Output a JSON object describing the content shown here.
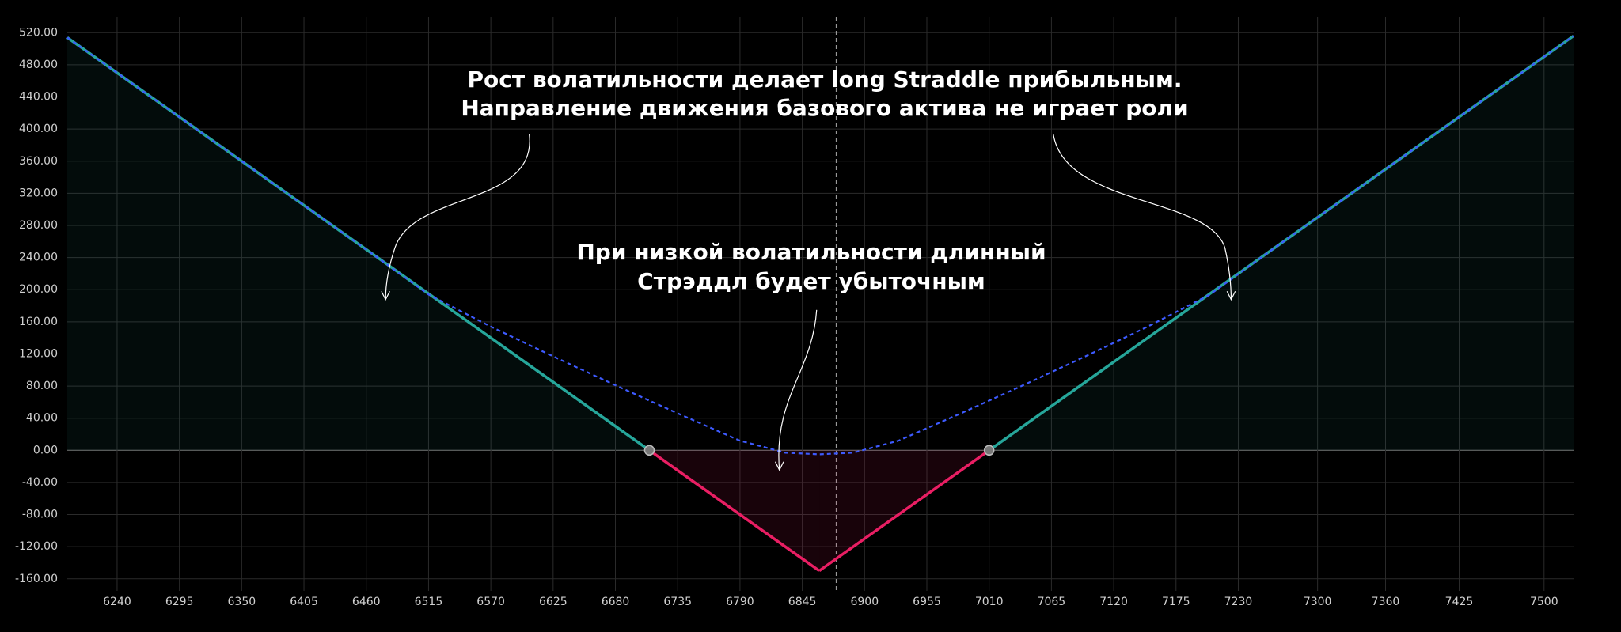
{
  "chart_data": {
    "type": "line",
    "annotations": [
      [
        "Рост волатильности делает long Straddle прибыльным.",
        "Направление движения базового актива не играет роли"
      ],
      [
        "При низкой волатильности длинный",
        "Стрэддл будет убыточным"
      ]
    ],
    "xlim": [
      6196,
      7526
    ],
    "ylim": [
      -175,
      540
    ],
    "xticks": [
      6240,
      6295,
      6350,
      6405,
      6460,
      6515,
      6570,
      6625,
      6680,
      6735,
      6790,
      6845,
      6900,
      6955,
      7010,
      7065,
      7120,
      7175,
      7230,
      7300,
      7360,
      7425,
      7500
    ],
    "yticks": [
      {
        "value": 520,
        "label": "520.00"
      },
      {
        "value": 480,
        "label": "480.00"
      },
      {
        "value": 440,
        "label": "440.00"
      },
      {
        "value": 400,
        "label": "400.00"
      },
      {
        "value": 360,
        "label": "360.00"
      },
      {
        "value": 320,
        "label": "320.00"
      },
      {
        "value": 280,
        "label": "280.00"
      },
      {
        "value": 240,
        "label": "240.00"
      },
      {
        "value": 200,
        "label": "200.00"
      },
      {
        "value": 160,
        "label": "160.00"
      },
      {
        "value": 120,
        "label": "120.00"
      },
      {
        "value": 80,
        "label": "80.00"
      },
      {
        "value": 40,
        "label": "40.00"
      },
      {
        "value": 0,
        "label": "0.00"
      },
      {
        "value": -40,
        "label": "-40.00"
      },
      {
        "value": -80,
        "label": "-80.00"
      },
      {
        "value": -120,
        "label": "-120.00"
      },
      {
        "value": -160,
        "label": "-160.00"
      }
    ],
    "grid": true,
    "vline": 6875,
    "series": [
      {
        "color": "#26a69a",
        "negative_color": "#e91e63",
        "x": [
          6196,
          6710,
          6860,
          7010,
          7526
        ],
        "values": [
          514,
          0,
          -150,
          0,
          516
        ]
      },
      {
        "color": "#3d5afe",
        "dashed": true,
        "x": [
          6196,
          6400,
          6460,
          6515,
          6570,
          6625,
          6680,
          6735,
          6790,
          6830,
          6860,
          6890,
          6930,
          6985,
          7040,
          7095,
          7150,
          7205,
          7260,
          7320,
          7526
        ],
        "values": [
          514,
          310,
          250,
          194,
          154,
          117,
          81,
          46,
          12,
          -3,
          -5,
          -3,
          12,
          46,
          81,
          117,
          154,
          194,
          250,
          310,
          516
        ]
      }
    ]
  }
}
